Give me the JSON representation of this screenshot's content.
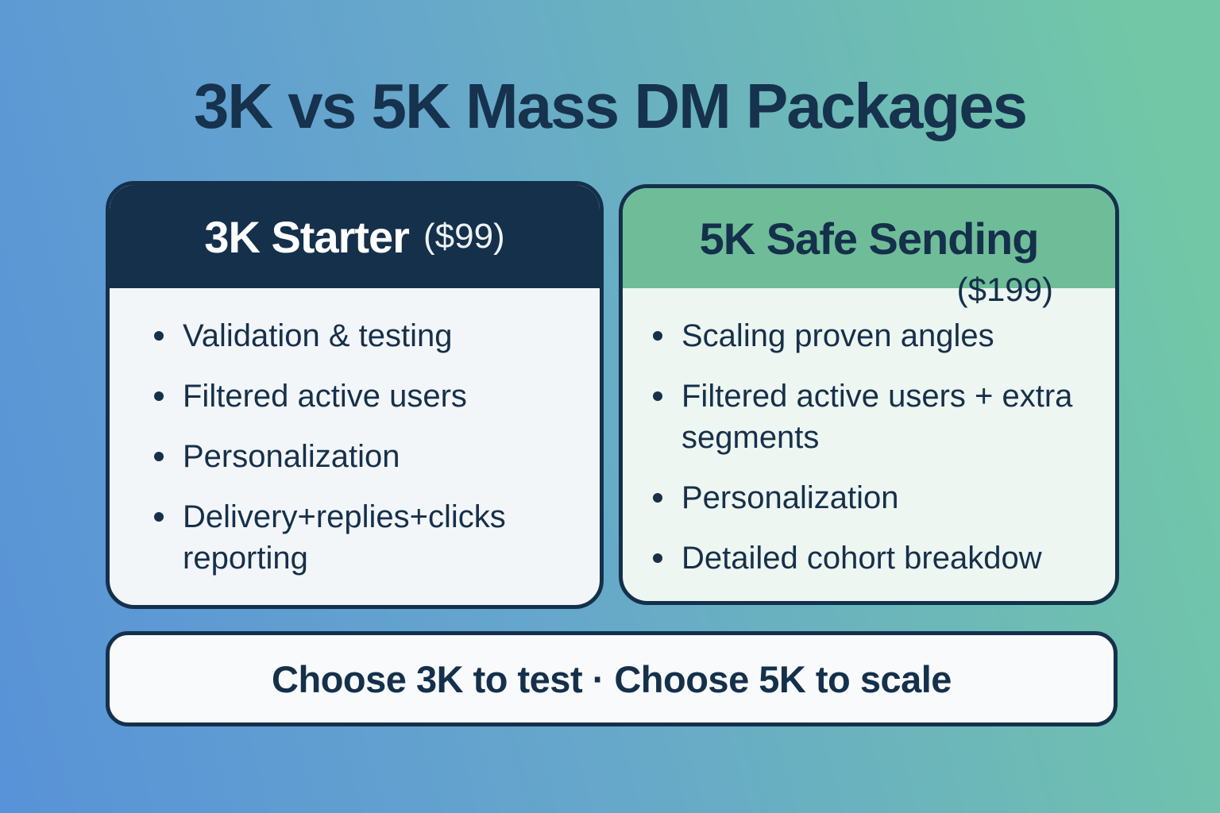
{
  "title": "3K vs 5K Mass DM Packages",
  "colors": {
    "gradient_left": "#5892d8",
    "gradient_right": "#72c8a6",
    "navy": "#14304b",
    "green_header": "#6fbd98",
    "card_body_left": "#f3f6f9",
    "card_body_right": "#eef6f1",
    "cta_background": "#f8fafb"
  },
  "cards": [
    {
      "name": "3K Starter",
      "price": "($99)",
      "features": [
        "Validation & testing",
        "Filtered active users",
        "Personalization",
        "Delivery+replies+clicks reporting"
      ]
    },
    {
      "name": "5K Safe Sending",
      "price": "($199)",
      "features": [
        "Scaling proven angles",
        "Filtered active users + extra segments",
        "Personalization",
        "Detailed cohort breakdow"
      ]
    }
  ],
  "footer": {
    "text": "Choose 3K to test · Choose 5K to scale"
  }
}
